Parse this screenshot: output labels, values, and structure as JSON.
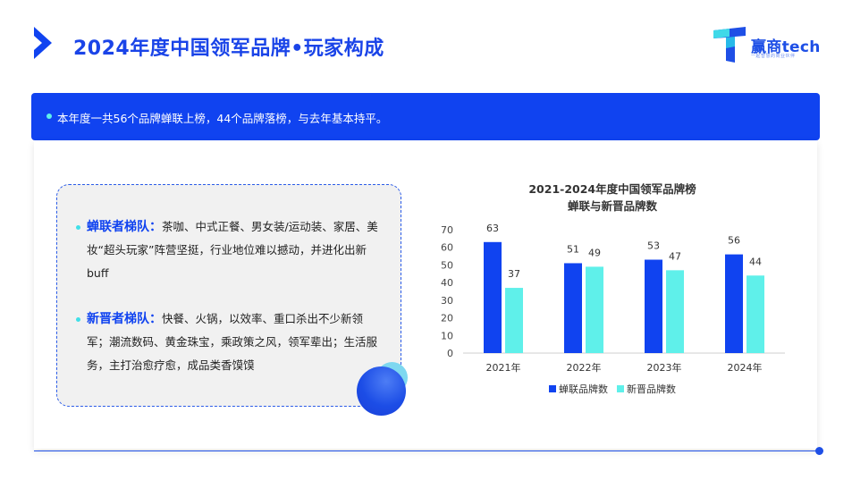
{
  "header": {
    "title": "2024年度中国领军品牌•玩家构成",
    "logo_text": "赢商tech",
    "logo_sub": "一起智慧的商业伙伴"
  },
  "banner": {
    "text": "本年度一共56个品牌蝉联上榜，44个品牌落榜，与去年基本持平。"
  },
  "card": {
    "item1_label": "蝉联者梯队：",
    "item1_text": "茶咖、中式正餐、男女装/运动装、家居、美妆“超头玩家”阵营坚挺，行业地位难以撼动，并进化出新buff",
    "item2_label": "新晋者梯队：",
    "item2_text": "快餐、火锅，以效率、重口杀出不少新领军；潮流数码、黄金珠宝，乘政策之风，领军辈出；生活服务，主打治愈疗愈，成品类香馍馍"
  },
  "colors": {
    "primary": "#1043f0",
    "accent": "#5ff0ea"
  },
  "chart_data": {
    "type": "bar",
    "title": "2021-2024年度中国领军品牌榜",
    "subtitle": "蝉联与新晋品牌数",
    "categories": [
      "2021年",
      "2022年",
      "2023年",
      "2024年"
    ],
    "series": [
      {
        "name": "蝉联品牌数",
        "color": "#1043f0",
        "values": [
          63,
          51,
          53,
          56
        ]
      },
      {
        "name": "新晋品牌数",
        "color": "#5ff0ea",
        "values": [
          37,
          49,
          47,
          44
        ]
      }
    ],
    "ylim": [
      0,
      70
    ],
    "yticks": [
      0,
      10,
      20,
      30,
      40,
      50,
      60,
      70
    ],
    "grid": false,
    "legend": "bottom"
  }
}
